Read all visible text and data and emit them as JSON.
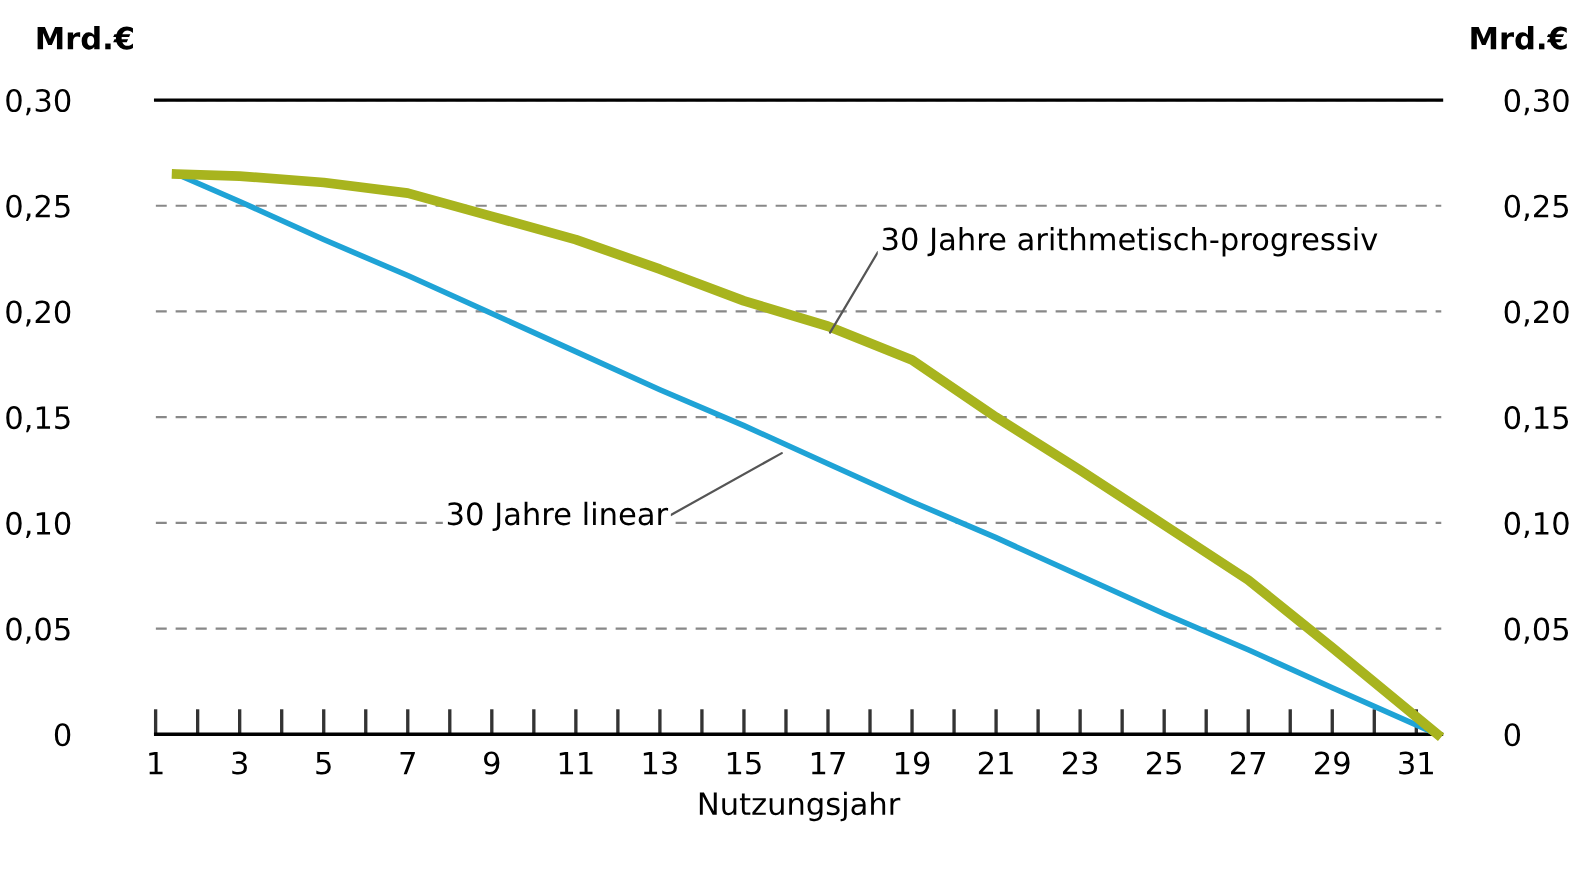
{
  "chart_data": {
    "type": "line",
    "xlabel": "Nutzungsjahr",
    "ylabel": "Mrd.€",
    "y2label": "Mrd.€",
    "series": [
      {
        "color": "#1fa3d6",
        "x": [
          1.5,
          3,
          5,
          7,
          9,
          11,
          13,
          15,
          17,
          19,
          21,
          23,
          25,
          27,
          29,
          31.5
        ],
        "values": [
          0.265,
          0.252,
          0.234,
          0.217,
          0.199,
          0.181,
          0.163,
          0.146,
          0.128,
          0.11,
          0.093,
          0.075,
          0.057,
          0.04,
          0.022,
          0
        ]
      },
      {
        "color": "#a8b41e",
        "x": [
          1.5,
          3,
          5,
          7,
          9,
          11,
          13,
          15,
          17,
          19,
          21,
          23,
          25,
          27,
          29,
          31.5
        ],
        "values": [
          0.265,
          0.264,
          0.261,
          0.256,
          0.245,
          0.234,
          0.22,
          0.205,
          0.193,
          0.177,
          0.15,
          0.125,
          0.099,
          0.073,
          0.041,
          0
        ]
      }
    ],
    "annotations": [
      {
        "text": "30 Jahre linear",
        "x": 15.9,
        "y": 0.133
      },
      {
        "text": "30 Jahre arithmetisch-progressiv",
        "x": 17.05,
        "y": 0.19
      }
    ],
    "xlim": [
      1,
      31.6
    ],
    "xticks": [
      1,
      {
        "value": 2,
        "label": null
      },
      3,
      {
        "value": 4,
        "label": null
      },
      5,
      {
        "value": 6,
        "label": null
      },
      7,
      {
        "value": 8,
        "label": null
      },
      9,
      {
        "value": 10,
        "label": null
      },
      11,
      {
        "value": 12,
        "label": null
      },
      13,
      {
        "value": 14,
        "label": null
      },
      15,
      {
        "value": 16,
        "label": null
      },
      17,
      {
        "value": 18,
        "label": null
      },
      19,
      {
        "value": 20,
        "label": null
      },
      21,
      {
        "value": 22,
        "label": null
      },
      23,
      {
        "value": 24,
        "label": null
      },
      25,
      {
        "value": 26,
        "label": null
      },
      27,
      {
        "value": 28,
        "label": null
      },
      29,
      {
        "value": 30,
        "label": null
      },
      31
    ],
    "ylim": [
      0,
      0.3
    ],
    "yticks": [
      {
        "value": 0,
        "label": "0"
      },
      {
        "value": 0.05,
        "label": "0,05"
      },
      {
        "value": 0.1,
        "label": "0,10"
      },
      {
        "value": 0.15,
        "label": "0,15"
      },
      {
        "value": 0.2,
        "label": "0,20"
      },
      {
        "value": 0.25,
        "label": "0,25"
      },
      {
        "value": 0.3,
        "label": "0,30"
      }
    ],
    "y2lim": [
      0,
      0.3
    ],
    "y2ticks": [
      {
        "value": 0,
        "label": "0"
      },
      {
        "value": 0.05,
        "label": "0,05"
      },
      {
        "value": 0.1,
        "label": "0,10"
      },
      {
        "value": 0.15,
        "label": "0,15"
      },
      {
        "value": 0.2,
        "label": "0,20"
      },
      {
        "value": 0.25,
        "label": "0,25"
      },
      {
        "value": 0.3,
        "label": "0,30"
      }
    ],
    "grid": "y",
    "legend": false,
    "line_style": "solid",
    "marker": "none"
  }
}
